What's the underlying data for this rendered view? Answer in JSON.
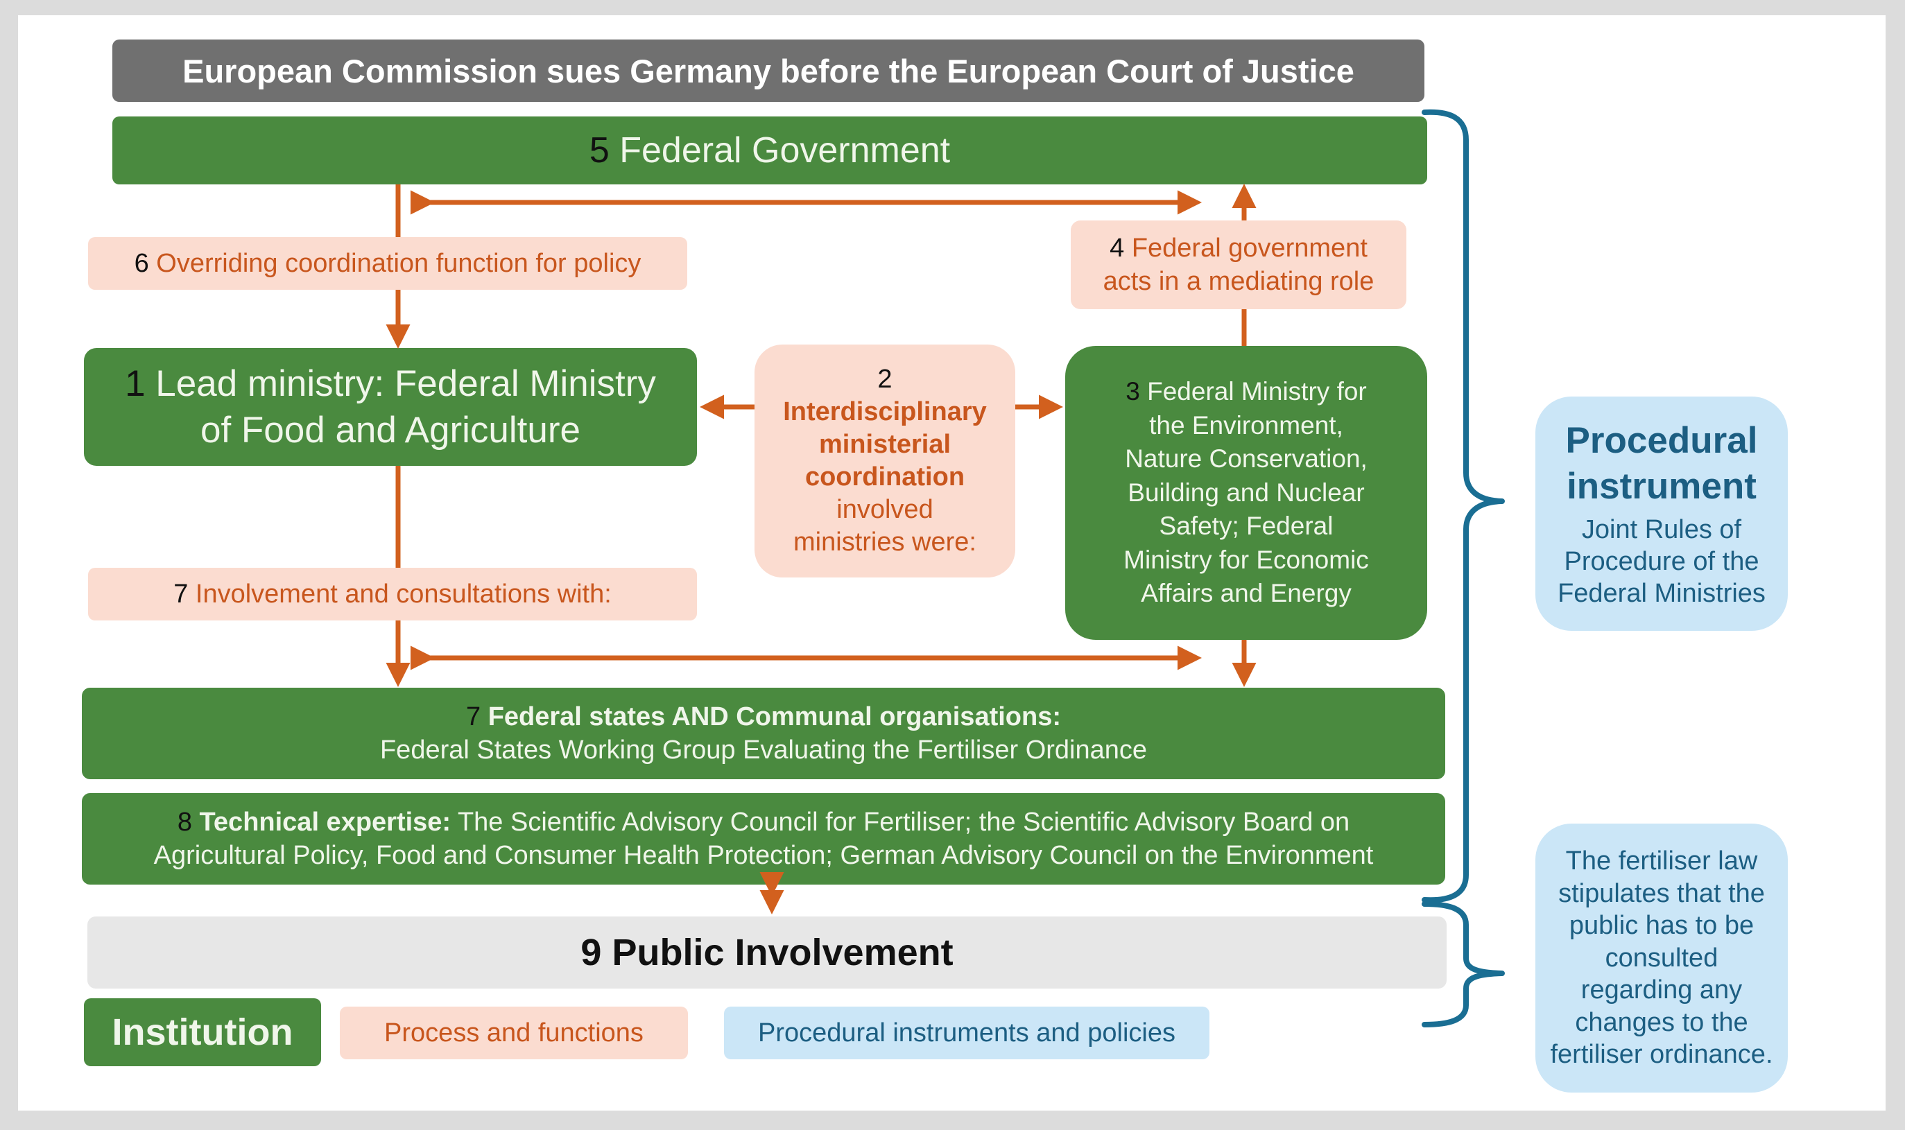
{
  "title": "European Commission sues Germany before the European Court of Justice",
  "federal_government": {
    "num": "5",
    "label": "Federal Government"
  },
  "box6": {
    "num": "6",
    "label": "Overriding coordination function for policy"
  },
  "box4": {
    "num": "4",
    "line1": "Federal government",
    "line2": "acts in a mediating role"
  },
  "box1": {
    "num": "1",
    "line1": "Lead ministry: Federal Ministry",
    "line2": "of Food and Agriculture"
  },
  "box2": {
    "num": "2",
    "bold1": "Interdisciplinary",
    "bold2": "ministerial",
    "bold3": "coordination",
    "line4": "involved",
    "line5": "ministries were:"
  },
  "box3": {
    "num": "3",
    "lines": [
      "Federal Ministry  for",
      "the Environment,",
      "Nature  Conservation,",
      "Building  and Nuclear",
      "Safety; Federal",
      "Ministry  for Economic",
      "Affairs and Energy"
    ]
  },
  "box7a": {
    "num": "7",
    "label": "Involvement and consultations with:"
  },
  "box7b": {
    "num": "7",
    "bold": "Federal states AND  Communal organisations:",
    "line2": "Federal States Working Group Evaluating  the Fertiliser Ordinance"
  },
  "box8": {
    "num": "8",
    "bold": "Technical expertise:",
    "line1_rest": " The Scientific Advisory Council for Fertiliser; the Scientific Advisory Board on",
    "line2": "Agricultural  Policy, Food and Consumer Health Protection; German Advisory Council  on the Environment"
  },
  "box9": {
    "num": "9",
    "label": "Public Involvement"
  },
  "procedural_instrument": {
    "head1": "Procedural",
    "head2": "instrument",
    "sub1": "Joint Rules of",
    "sub2": "Procedure of the",
    "sub3": "Federal Ministries"
  },
  "fertiliser_law": {
    "lines": [
      "The fertiliser law",
      "stipulates that the",
      "public has to be",
      "consulted",
      "regarding any",
      "changes to the",
      "fertiliser ordinance."
    ]
  },
  "legend": {
    "institution": "Institution",
    "process": "Process and functions",
    "policies": "Procedural instruments and policies"
  },
  "colors": {
    "institution": "#4a8a3f",
    "process": "#fbdcd0",
    "policy": "#cbe6f7",
    "arrow": "#d2601e",
    "brace": "#1a6e93"
  }
}
